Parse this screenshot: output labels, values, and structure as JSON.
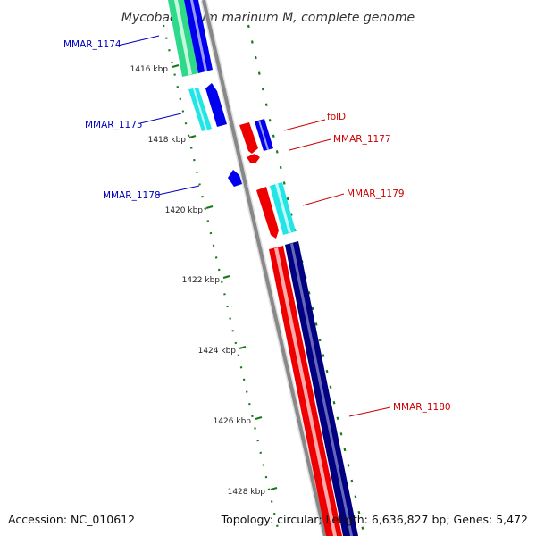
{
  "title": "Mycobacterium marinum M, complete genome",
  "accession": "Accession: NC_010612",
  "topology": "Topology: circular; Length: 6,636,827 bp; Genes: 5,472",
  "colors": {
    "backbone": "#888888",
    "tick": "#1a7a1a",
    "label_blue": "#0000bb",
    "label_red": "#cc0000"
  },
  "kbp_ticks": [
    {
      "label": "1416 kbp"
    },
    {
      "label": "1418 kbp"
    },
    {
      "label": "1420 kbp"
    },
    {
      "label": "1422 kbp"
    },
    {
      "label": "1424 kbp"
    },
    {
      "label": "1426 kbp"
    },
    {
      "label": "1428 kbp"
    }
  ],
  "gene_labels": [
    {
      "text": "MMAR_1174",
      "color": "#0000bb"
    },
    {
      "text": "MMAR_1175",
      "color": "#0000bb"
    },
    {
      "text": "MMAR_1178",
      "color": "#0000bb"
    },
    {
      "text": "folD",
      "color": "#cc0000"
    },
    {
      "text": "MMAR_1177",
      "color": "#cc0000"
    },
    {
      "text": "MMAR_1179",
      "color": "#cc0000"
    },
    {
      "text": "MMAR_1180",
      "color": "#cc0000"
    }
  ]
}
